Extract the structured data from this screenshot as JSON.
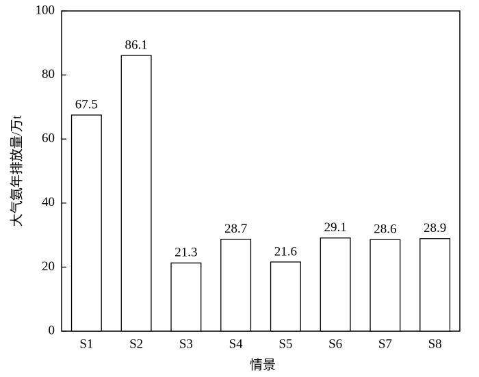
{
  "chart_data": {
    "type": "bar",
    "xlabel": "情景",
    "ylabel": "大气氨年排放量/万t",
    "categories": [
      "S1",
      "S2",
      "S3",
      "S4",
      "S5",
      "S6",
      "S7",
      "S8"
    ],
    "values": [
      67.5,
      86.1,
      21.3,
      28.7,
      21.6,
      29.1,
      28.6,
      28.9
    ],
    "color": "#ffffff",
    "edgecolor": "#000000",
    "ylim": [
      0,
      100
    ],
    "yticks": [
      0,
      20,
      40,
      60,
      80,
      100
    ],
    "grid": false
  }
}
